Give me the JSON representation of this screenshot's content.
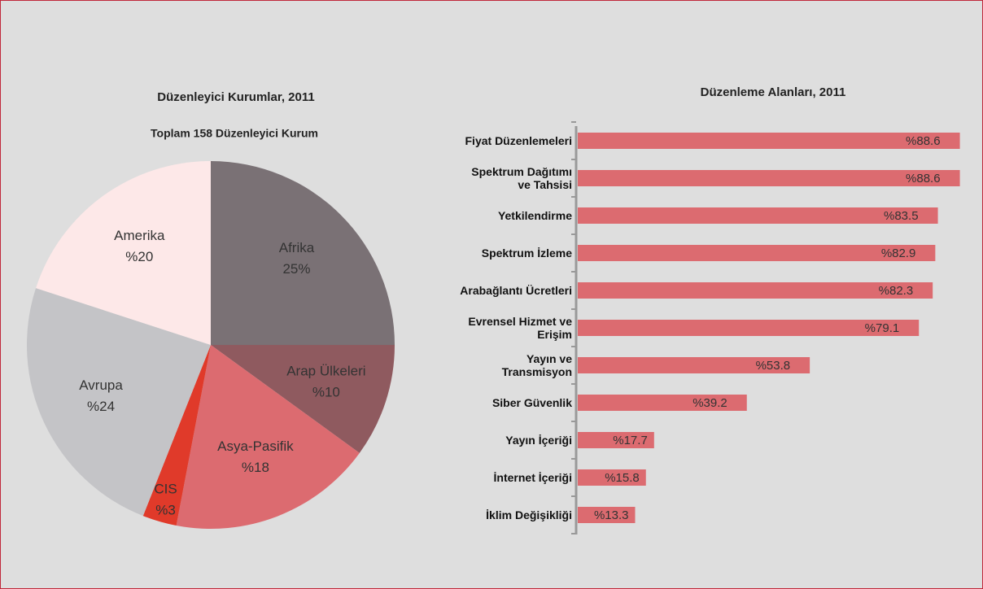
{
  "chart_data": [
    {
      "type": "pie",
      "title": "Düzenleyici Kurumlar, 2011",
      "subtitle": "Toplam 158 Düzenleyici Kurum",
      "categories": [
        "Afrika",
        "Arap Ülkeleri",
        "Asya-Pasifik",
        "CIS",
        "Avrupa",
        "Amerika"
      ],
      "values": [
        25,
        10,
        18,
        3,
        24,
        20
      ],
      "value_labels": [
        "25%",
        "%10",
        "%18",
        "%3",
        "%24",
        "%20"
      ],
      "colors": [
        "#7a7175",
        "#8f5a5f",
        "#dc6b70",
        "#e03a2a",
        "#c4c4c7",
        "#fde8e8"
      ]
    },
    {
      "type": "bar",
      "orientation": "horizontal",
      "title": "Düzenleme Alanları, 2011",
      "categories": [
        "Fiyat Düzenlemeleri",
        "Spektrum Dağıtımı ve Tahsisi",
        "Yetkilendirme",
        "Spektrum İzleme",
        "Arabağlantı Ücretleri",
        "Evrensel Hizmet ve Erişim",
        "Yayın ve Transmisyon",
        "Siber Güvenlik",
        "Yayın İçeriği",
        "İnternet İçeriği",
        "İklim Değişikliği"
      ],
      "values": [
        88.6,
        88.6,
        83.5,
        82.9,
        82.3,
        79.1,
        53.8,
        39.2,
        17.7,
        15.8,
        13.3
      ],
      "value_labels": [
        "%88.6",
        "%88.6",
        "%83.5",
        "%82.9",
        "%82.3",
        "%79.1",
        "%53.8",
        "%39.2",
        "%17.7",
        "%15.8",
        "%13.3"
      ],
      "color": "#dc6b70"
    }
  ]
}
